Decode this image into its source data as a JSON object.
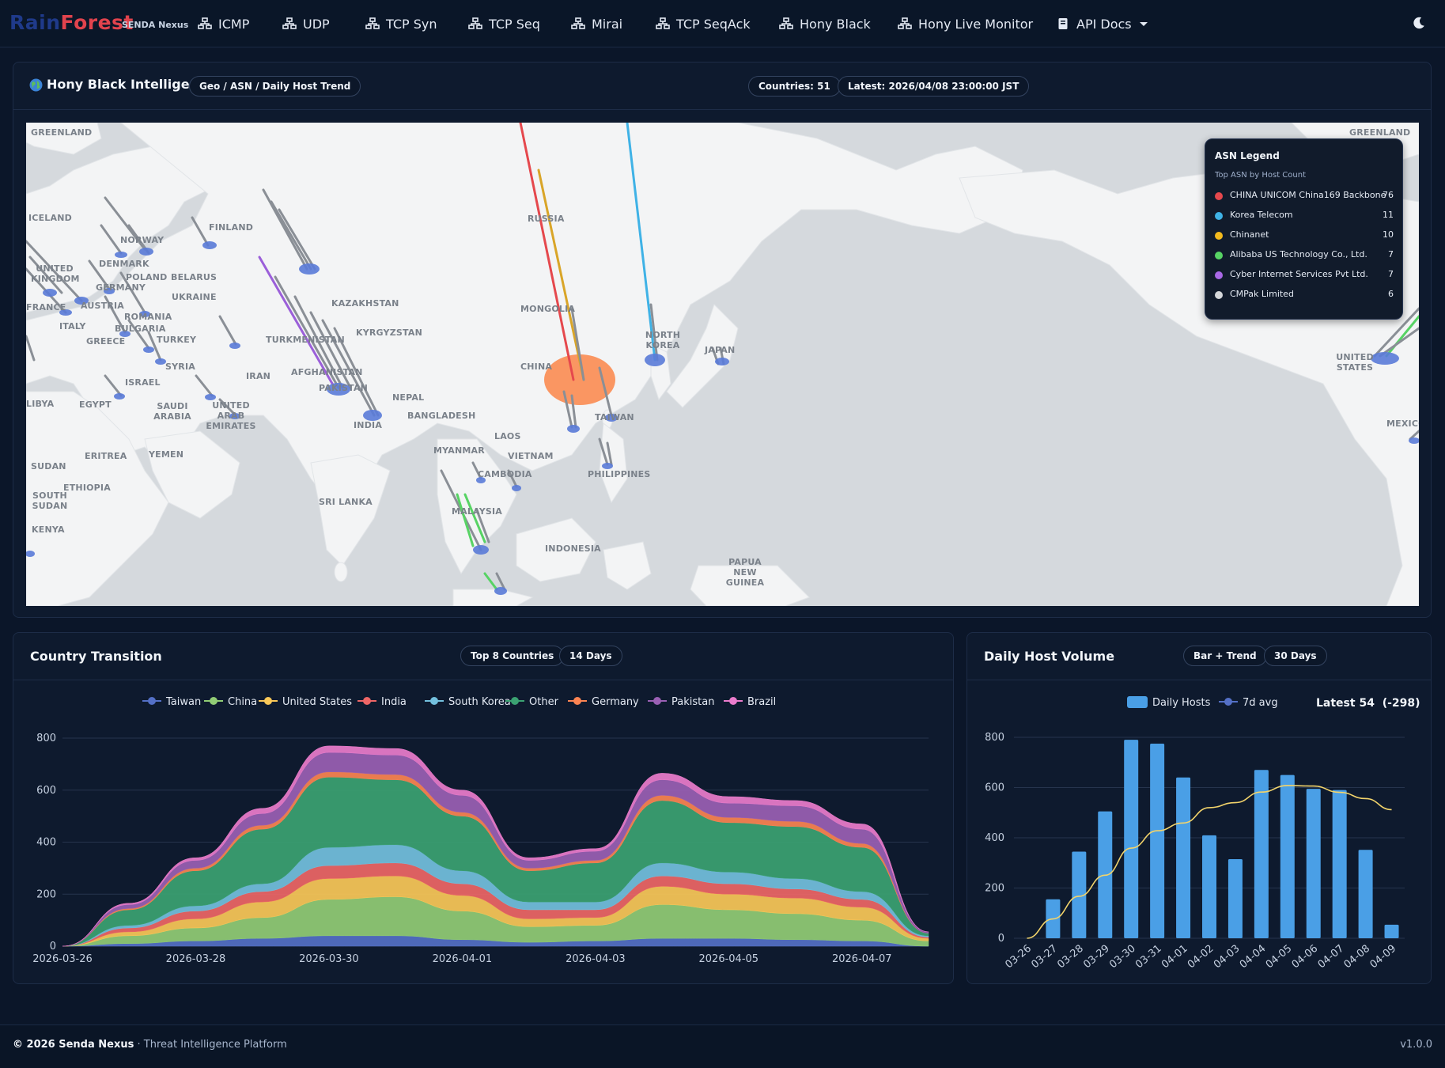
{
  "nav": {
    "brand_part1": "Rain",
    "brand_part2": "Forest",
    "brand_sub": "SENDA Nexus",
    "items": [
      {
        "label": "ICMP"
      },
      {
        "label": "UDP"
      },
      {
        "label": "TCP Syn"
      },
      {
        "label": "TCP Seq"
      },
      {
        "label": "Mirai"
      },
      {
        "label": "TCP SeqAck"
      },
      {
        "label": "Hony Black"
      },
      {
        "label": "Hony Live Monitor"
      }
    ],
    "docs_label": "API Docs"
  },
  "intel": {
    "title": "Hony Black Intelligence",
    "tag": "Geo / ASN / Daily Host Trend",
    "countries": "Countries: 51",
    "latest": "Latest: 2026/04/08 23:00:00 JST"
  },
  "map": {
    "labels": [
      "GREENLAND",
      "GREENLAND",
      "ICELAND",
      "FINLAND",
      "NORWAY",
      "RUSSIA",
      "DENMARK",
      "UNITED KINGDOM",
      "POLAND",
      "BELARUS",
      "GERMANY",
      "UKRAINE",
      "AUSTRIA",
      "FRANCE",
      "ROMANIA",
      "BULGARIA",
      "KAZAKHSTAN",
      "MONGOLIA",
      "ITALY",
      "GREECE",
      "TURKEY",
      "TURKMENISTAN",
      "KYRGYZSTAN",
      "NORTH KOREA",
      "JAPAN",
      "SYRIA",
      "ISRAEL",
      "IRAN",
      "AFGHANISTAN",
      "PAKISTAN",
      "CHINA",
      "EGYPT",
      "SAUDI ARABIA",
      "UNITED ARAB EMIRATES",
      "NEPAL",
      "BANGLADESH",
      "INDIA",
      "TAIWAN",
      "LIBYA",
      "LAOS",
      "MYANMAR",
      "VIETNAM",
      "SUDAN",
      "ERITREA",
      "YEMEN",
      "CAMBODIA",
      "PHILIPPINES",
      "ETHIOPIA",
      "SOUTH SUDAN",
      "SRI LANKA",
      "MALAYSIA",
      "KENYA",
      "INDONESIA",
      "PAPUA NEW GUINEA",
      "UNITED STATES",
      "MEXICO"
    ]
  },
  "asn_legend": {
    "title": "ASN Legend",
    "subtitle": "Top ASN by Host Count",
    "items": [
      {
        "name": "CHINA UNICOM China169 Backbone",
        "count": "76",
        "color": "#e5484d"
      },
      {
        "name": "Korea Telecom",
        "count": "11",
        "color": "#3fb2e6"
      },
      {
        "name": "Chinanet",
        "count": "10",
        "color": "#f2b91d"
      },
      {
        "name": "Alibaba US Technology Co., Ltd.",
        "count": "7",
        "color": "#57d364"
      },
      {
        "name": "Cyber Internet Services Pvt Ltd.",
        "count": "7",
        "color": "#a968e6"
      },
      {
        "name": "CMPak Limited",
        "count": "6",
        "color": "#d5d7da"
      }
    ]
  },
  "transition": {
    "title": "Country Transition",
    "pill1": "Top 8 Countries",
    "pill2": "14 Days"
  },
  "volume": {
    "title": "Daily Host Volume",
    "pill1": "Bar + Trend",
    "pill2": "30 Days",
    "latest_label": "Latest 54",
    "latest_delta": "(-298)"
  },
  "chart_data": [
    {
      "type": "area",
      "stacked": true,
      "x": [
        "2026-03-26",
        "2026-03-27",
        "2026-03-28",
        "2026-03-29",
        "2026-03-30",
        "2026-03-31",
        "2026-04-01",
        "2026-04-02",
        "2026-04-03",
        "2026-04-04",
        "2026-04-05",
        "2026-04-06",
        "2026-04-07",
        "2026-04-08"
      ],
      "x_tick_labels": [
        "2026-03-26",
        "2026-03-28",
        "2026-03-30",
        "2026-04-01",
        "2026-04-03",
        "2026-04-05",
        "2026-04-07",
        "2026-04-"
      ],
      "ylim": [
        0,
        800
      ],
      "y_ticks": [
        0,
        200,
        400,
        600,
        800
      ],
      "grid": true,
      "legend": "top",
      "series": [
        {
          "name": "Taiwan",
          "color": "#5470c6",
          "values": [
            0,
            10,
            20,
            30,
            40,
            40,
            25,
            15,
            20,
            30,
            30,
            25,
            20,
            0
          ]
        },
        {
          "name": "China",
          "color": "#91cc75",
          "values": [
            0,
            30,
            50,
            80,
            140,
            150,
            110,
            60,
            60,
            130,
            110,
            100,
            80,
            20
          ]
        },
        {
          "name": "United States",
          "color": "#fac858",
          "values": [
            0,
            15,
            35,
            60,
            80,
            80,
            60,
            30,
            30,
            70,
            60,
            60,
            50,
            10
          ]
        },
        {
          "name": "India",
          "color": "#ee6666",
          "values": [
            0,
            15,
            30,
            40,
            50,
            50,
            45,
            35,
            30,
            40,
            40,
            35,
            30,
            5
          ]
        },
        {
          "name": "South Korea",
          "color": "#73c0de",
          "values": [
            0,
            10,
            20,
            30,
            70,
            70,
            50,
            30,
            30,
            50,
            45,
            40,
            30,
            5
          ]
        },
        {
          "name": "Other",
          "color": "#3ba272",
          "values": [
            0,
            60,
            135,
            210,
            270,
            250,
            210,
            120,
            150,
            240,
            190,
            200,
            170,
            10
          ]
        },
        {
          "name": "Germany",
          "color": "#fc8452",
          "values": [
            0,
            5,
            10,
            15,
            20,
            20,
            15,
            10,
            10,
            20,
            20,
            20,
            15,
            0
          ]
        },
        {
          "name": "Pakistan",
          "color": "#9a60b4",
          "values": [
            0,
            15,
            30,
            45,
            75,
            75,
            65,
            30,
            35,
            60,
            55,
            60,
            55,
            5
          ]
        },
        {
          "name": "Brazil",
          "color": "#ea7ccc",
          "values": [
            0,
            5,
            10,
            20,
            25,
            25,
            20,
            10,
            10,
            25,
            25,
            20,
            20,
            0
          ]
        }
      ]
    },
    {
      "type": "bar",
      "categories": [
        "03-26",
        "03-27",
        "03-28",
        "03-29",
        "03-30",
        "03-31",
        "04-01",
        "04-02",
        "04-03",
        "04-04",
        "04-05",
        "04-06",
        "04-07",
        "04-08",
        "04-09"
      ],
      "ylim": [
        0,
        800
      ],
      "y_ticks": [
        0,
        200,
        400,
        600,
        800
      ],
      "grid": true,
      "legend": "top",
      "series": [
        {
          "name": "Daily Hosts",
          "type": "bar",
          "color": "#4a9fe6",
          "values": [
            0,
            155,
            345,
            505,
            790,
            775,
            640,
            410,
            315,
            670,
            650,
            595,
            590,
            352,
            54
          ]
        },
        {
          "name": "7d avg",
          "type": "line",
          "color": "#f3d46b",
          "legend_color": "#5470c6",
          "values": [
            0,
            77,
            167,
            251,
            359,
            428,
            459,
            520,
            540,
            582,
            608,
            606,
            581,
            556,
            512
          ]
        }
      ]
    }
  ]
}
